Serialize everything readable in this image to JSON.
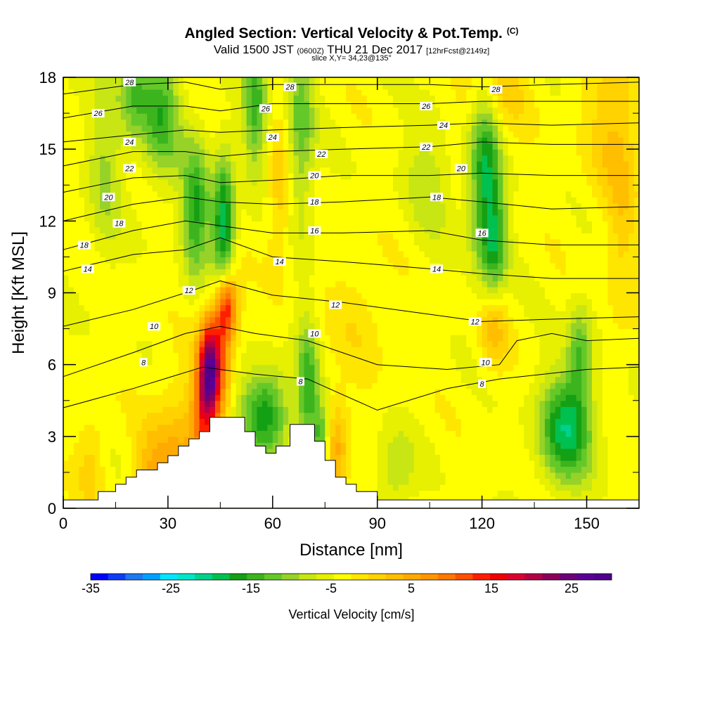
{
  "title": "Angled Section: Vertical Velocity & Pot.Temp.",
  "copyright": "(C)",
  "subtitle_main": "Valid 1500 JST",
  "subtitle_utc": "(0600Z)",
  "subtitle_date": "THU 21 Dec 2017",
  "subtitle_fcst": "[12hrFcst@2149z]",
  "slice_info": "slice X,Y= 34,23@135°",
  "chart_data": {
    "type": "heatmap",
    "xlabel": "Distance [nm]",
    "ylabel": "Height [Kft MSL]",
    "xlim": [
      0,
      165
    ],
    "ylim": [
      0,
      18
    ],
    "x_ticks": [
      "0",
      "30",
      "60",
      "90",
      "120",
      "150"
    ],
    "y_ticks": [
      "0",
      "3",
      "6",
      "9",
      "12",
      "15",
      "18"
    ],
    "colorbar": {
      "label": "Vertical Velocity [cm/s]",
      "range": [
        -35,
        30
      ],
      "step": 2.5,
      "tick_labels": [
        "-35",
        "-25",
        "-15",
        "-5",
        "5",
        "15",
        "25"
      ],
      "tick_values": [
        -35,
        -25,
        -15,
        -5,
        5,
        15,
        25
      ],
      "colors": [
        "#0000ff",
        "#0f3cf5",
        "#1e78f0",
        "#00a0ff",
        "#00e6ff",
        "#00e6c8",
        "#00d28c",
        "#00c050",
        "#14a014",
        "#3cb41e",
        "#64c828",
        "#96d228",
        "#c8e614",
        "#e6f000",
        "#ffff00",
        "#ffe600",
        "#ffd200",
        "#ffbe00",
        "#ffaa00",
        "#ff9600",
        "#ff7800",
        "#ff5000",
        "#ff1e00",
        "#f00000",
        "#dc0032",
        "#b40046",
        "#8c005a",
        "#6e0078",
        "#5a0096",
        "#50008c"
      ]
    },
    "wvel_blobs": [
      {
        "x": 42,
        "y": 5.8,
        "sx": 2.2,
        "sy": 1.5,
        "amp": 32
      },
      {
        "x": 47,
        "y": 8.5,
        "sx": 2.3,
        "sy": 1.0,
        "amp": 20
      },
      {
        "x": 46,
        "y": 7.0,
        "sx": 2.0,
        "sy": 2.5,
        "amp": 10
      },
      {
        "x": 33,
        "y": 1.5,
        "sx": 5.0,
        "sy": 2.5,
        "amp": 10
      },
      {
        "x": 25,
        "y": 1.2,
        "sx": 3.5,
        "sy": 1.5,
        "amp": 7
      },
      {
        "x": 40,
        "y": 4.0,
        "sx": 2.5,
        "sy": 1.5,
        "amp": 12
      },
      {
        "x": 58,
        "y": 4.0,
        "sx": 5.0,
        "sy": 1.3,
        "amp": -15
      },
      {
        "x": 46,
        "y": 11.5,
        "sx": 2.2,
        "sy": 2.2,
        "amp": -20
      },
      {
        "x": 38,
        "y": 12.5,
        "sx": 2.8,
        "sy": 2.0,
        "amp": -14
      },
      {
        "x": 28,
        "y": 16.5,
        "sx": 4.0,
        "sy": 2.0,
        "amp": -12
      },
      {
        "x": 20,
        "y": 17.5,
        "sx": 3.0,
        "sy": 1.5,
        "amp": -10
      },
      {
        "x": 55,
        "y": 17.0,
        "sx": 2.5,
        "sy": 2.0,
        "amp": -12
      },
      {
        "x": 68,
        "y": 16.0,
        "sx": 2.8,
        "sy": 3.0,
        "amp": -10
      },
      {
        "x": 121,
        "y": 14.0,
        "sx": 3.2,
        "sy": 3.0,
        "amp": -16
      },
      {
        "x": 124,
        "y": 11.0,
        "sx": 2.5,
        "sy": 1.5,
        "amp": -10
      },
      {
        "x": 144,
        "y": 3.3,
        "sx": 5.5,
        "sy": 1.6,
        "amp": -17
      },
      {
        "x": 148,
        "y": 6.5,
        "sx": 2.5,
        "sy": 1.5,
        "amp": -10
      },
      {
        "x": 70,
        "y": 5.0,
        "sx": 2.2,
        "sy": 2.0,
        "amp": -12
      },
      {
        "x": 74,
        "y": 3.0,
        "sx": 1.8,
        "sy": 1.0,
        "amp": -12
      },
      {
        "x": 78,
        "y": 2.5,
        "sx": 2.5,
        "sy": 1.5,
        "amp": 10
      },
      {
        "x": 122,
        "y": 17.5,
        "sx": 7.0,
        "sy": 1.5,
        "amp": 7
      },
      {
        "x": 158,
        "y": 16.0,
        "sx": 6.0,
        "sy": 2.5,
        "amp": 6
      },
      {
        "x": 123,
        "y": 7.5,
        "sx": 3.0,
        "sy": 1.2,
        "amp": 8
      },
      {
        "x": 95,
        "y": 1.5,
        "sx": 4.0,
        "sy": 1.2,
        "amp": -6
      },
      {
        "x": 8,
        "y": 2.0,
        "sx": 3.0,
        "sy": 1.5,
        "amp": 5
      },
      {
        "x": 62,
        "y": 13.0,
        "sx": 2.5,
        "sy": 2.5,
        "amp": 6
      },
      {
        "x": 105,
        "y": 14.0,
        "sx": 5.0,
        "sy": 2.0,
        "amp": -5
      },
      {
        "x": 12,
        "y": 14.5,
        "sx": 3.5,
        "sy": 3.0,
        "amp": -6
      },
      {
        "x": 85,
        "y": 8.0,
        "sx": 6.0,
        "sy": 2.0,
        "amp": 3
      },
      {
        "x": 160,
        "y": 11.0,
        "sx": 3.0,
        "sy": 3.0,
        "amp": 4
      }
    ],
    "terrain": [
      [
        0,
        0.35
      ],
      [
        10,
        0.35
      ],
      [
        10,
        0.7
      ],
      [
        15,
        0.7
      ],
      [
        15,
        1.0
      ],
      [
        18,
        1.0
      ],
      [
        18,
        1.3
      ],
      [
        21,
        1.3
      ],
      [
        21,
        1.6
      ],
      [
        27,
        1.6
      ],
      [
        27,
        1.9
      ],
      [
        30,
        1.9
      ],
      [
        30,
        2.2
      ],
      [
        33,
        2.2
      ],
      [
        33,
        2.6
      ],
      [
        36,
        2.6
      ],
      [
        36,
        2.9
      ],
      [
        39,
        2.9
      ],
      [
        39,
        3.2
      ],
      [
        42,
        3.2
      ],
      [
        42,
        3.8
      ],
      [
        52,
        3.8
      ],
      [
        52,
        3.2
      ],
      [
        55,
        3.2
      ],
      [
        55,
        2.6
      ],
      [
        58,
        2.6
      ],
      [
        58,
        2.3
      ],
      [
        61,
        2.3
      ],
      [
        61,
        2.6
      ],
      [
        65,
        2.6
      ],
      [
        65,
        3.5
      ],
      [
        72,
        3.5
      ],
      [
        72,
        2.8
      ],
      [
        75,
        2.8
      ],
      [
        75,
        2.0
      ],
      [
        78,
        2.0
      ],
      [
        78,
        1.3
      ],
      [
        81,
        1.3
      ],
      [
        81,
        1.0
      ],
      [
        84,
        1.0
      ],
      [
        84,
        0.7
      ],
      [
        90,
        0.7
      ],
      [
        90,
        0.35
      ],
      [
        165,
        0.35
      ]
    ],
    "isentropes": [
      {
        "label": "8",
        "points": [
          [
            0,
            4.2
          ],
          [
            20,
            5.0
          ],
          [
            40,
            5.9
          ],
          [
            55,
            5.6
          ],
          [
            70,
            5.4
          ],
          [
            90,
            4.1
          ],
          [
            110,
            5.0
          ],
          [
            125,
            5.4
          ],
          [
            150,
            5.8
          ],
          [
            165,
            5.9
          ]
        ]
      },
      {
        "label": "10",
        "points": [
          [
            0,
            5.5
          ],
          [
            20,
            6.5
          ],
          [
            35,
            7.3
          ],
          [
            45,
            7.6
          ],
          [
            55,
            7.3
          ],
          [
            70,
            7.0
          ],
          [
            90,
            6.0
          ],
          [
            110,
            5.8
          ],
          [
            125,
            6.0
          ],
          [
            130,
            7.0
          ],
          [
            140,
            7.3
          ],
          [
            150,
            7.0
          ],
          [
            165,
            7.1
          ]
        ]
      },
      {
        "label": "12",
        "points": [
          [
            0,
            7.6
          ],
          [
            20,
            8.3
          ],
          [
            35,
            9.0
          ],
          [
            45,
            9.5
          ],
          [
            60,
            8.9
          ],
          [
            80,
            8.6
          ],
          [
            100,
            8.2
          ],
          [
            120,
            7.8
          ],
          [
            140,
            7.9
          ],
          [
            165,
            8.0
          ]
        ]
      },
      {
        "label": "14",
        "points": [
          [
            0,
            9.9
          ],
          [
            20,
            10.6
          ],
          [
            35,
            10.8
          ],
          [
            45,
            11.3
          ],
          [
            60,
            10.5
          ],
          [
            80,
            10.3
          ],
          [
            105,
            10.0
          ],
          [
            120,
            9.8
          ],
          [
            140,
            9.6
          ],
          [
            165,
            9.6
          ]
        ]
      },
      {
        "label": "16",
        "points": [
          [
            0,
            10.8
          ],
          [
            20,
            11.6
          ],
          [
            35,
            12.0
          ],
          [
            45,
            11.8
          ],
          [
            60,
            11.5
          ],
          [
            80,
            11.5
          ],
          [
            105,
            11.6
          ],
          [
            120,
            11.2
          ],
          [
            140,
            11.0
          ],
          [
            165,
            11.0
          ]
        ]
      },
      {
        "label": "18",
        "points": [
          [
            0,
            12.0
          ],
          [
            20,
            12.7
          ],
          [
            35,
            13.0
          ],
          [
            45,
            12.8
          ],
          [
            60,
            12.7
          ],
          [
            80,
            12.8
          ],
          [
            105,
            13.0
          ],
          [
            120,
            12.8
          ],
          [
            140,
            12.5
          ],
          [
            165,
            12.6
          ]
        ]
      },
      {
        "label": "20",
        "points": [
          [
            0,
            13.2
          ],
          [
            20,
            13.8
          ],
          [
            35,
            13.9
          ],
          [
            45,
            13.6
          ],
          [
            60,
            13.7
          ],
          [
            80,
            13.9
          ],
          [
            105,
            13.9
          ],
          [
            120,
            14.0
          ],
          [
            140,
            13.9
          ],
          [
            165,
            13.9
          ]
        ]
      },
      {
        "label": "22",
        "points": [
          [
            0,
            14.3
          ],
          [
            20,
            14.9
          ],
          [
            35,
            14.9
          ],
          [
            45,
            14.7
          ],
          [
            60,
            14.9
          ],
          [
            80,
            15.0
          ],
          [
            105,
            15.1
          ],
          [
            120,
            15.3
          ],
          [
            140,
            15.2
          ],
          [
            165,
            15.2
          ]
        ]
      },
      {
        "label": "24",
        "points": [
          [
            0,
            15.3
          ],
          [
            20,
            15.6
          ],
          [
            35,
            15.8
          ],
          [
            45,
            15.7
          ],
          [
            60,
            15.8
          ],
          [
            80,
            15.9
          ],
          [
            105,
            16.0
          ],
          [
            120,
            16.1
          ],
          [
            140,
            16.0
          ],
          [
            165,
            16.1
          ]
        ]
      },
      {
        "label": "26",
        "points": [
          [
            0,
            16.3
          ],
          [
            20,
            16.8
          ],
          [
            35,
            16.8
          ],
          [
            45,
            16.6
          ],
          [
            60,
            16.9
          ],
          [
            80,
            16.9
          ],
          [
            105,
            16.9
          ],
          [
            120,
            17.0
          ],
          [
            140,
            17.0
          ],
          [
            165,
            17.0
          ]
        ]
      },
      {
        "label": "28",
        "points": [
          [
            0,
            17.3
          ],
          [
            20,
            17.7
          ],
          [
            35,
            17.8
          ],
          [
            45,
            17.5
          ],
          [
            60,
            17.7
          ],
          [
            80,
            17.7
          ],
          [
            105,
            17.7
          ],
          [
            120,
            17.6
          ],
          [
            140,
            17.7
          ],
          [
            165,
            17.8
          ]
        ]
      }
    ],
    "isentrope_label_positions": [
      {
        "label": "28",
        "x": 19,
        "y": 17.8
      },
      {
        "label": "28",
        "x": 65,
        "y": 17.6
      },
      {
        "label": "28",
        "x": 124,
        "y": 17.5
      },
      {
        "label": "26",
        "x": 10,
        "y": 16.5
      },
      {
        "label": "26",
        "x": 58,
        "y": 16.7
      },
      {
        "label": "26",
        "x": 104,
        "y": 16.8
      },
      {
        "label": "24",
        "x": 19,
        "y": 15.3
      },
      {
        "label": "24",
        "x": 60,
        "y": 15.5
      },
      {
        "label": "24",
        "x": 109,
        "y": 16.0
      },
      {
        "label": "22",
        "x": 19,
        "y": 14.2
      },
      {
        "label": "22",
        "x": 74,
        "y": 14.8
      },
      {
        "label": "22",
        "x": 104,
        "y": 15.1
      },
      {
        "label": "20",
        "x": 13,
        "y": 13.0
      },
      {
        "label": "20",
        "x": 72,
        "y": 13.9
      },
      {
        "label": "20",
        "x": 114,
        "y": 14.2
      },
      {
        "label": "18",
        "x": 16,
        "y": 11.9
      },
      {
        "label": "18",
        "x": 72,
        "y": 12.8
      },
      {
        "label": "18",
        "x": 107,
        "y": 13.0
      },
      {
        "label": "18",
        "x": 6,
        "y": 11.0
      },
      {
        "label": "16",
        "x": 72,
        "y": 11.6
      },
      {
        "label": "16",
        "x": 120,
        "y": 11.5
      },
      {
        "label": "14",
        "x": 7,
        "y": 10.0
      },
      {
        "label": "14",
        "x": 62,
        "y": 10.3
      },
      {
        "label": "14",
        "x": 107,
        "y": 10.0
      },
      {
        "label": "12",
        "x": 36,
        "y": 9.1
      },
      {
        "label": "12",
        "x": 78,
        "y": 8.5
      },
      {
        "label": "12",
        "x": 118,
        "y": 7.8
      },
      {
        "label": "10",
        "x": 26,
        "y": 7.6
      },
      {
        "label": "10",
        "x": 72,
        "y": 7.3
      },
      {
        "label": "10",
        "x": 121,
        "y": 6.1
      },
      {
        "label": "8",
        "x": 23,
        "y": 6.1
      },
      {
        "label": "8",
        "x": 68,
        "y": 5.3
      },
      {
        "label": "8",
        "x": 120,
        "y": 5.2
      }
    ]
  }
}
